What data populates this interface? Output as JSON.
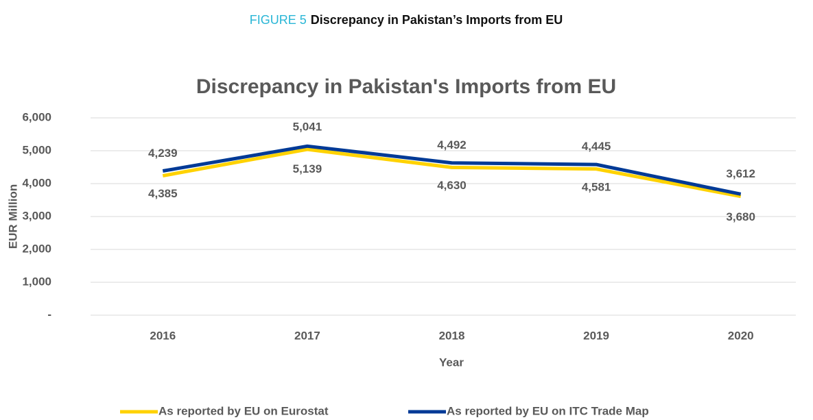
{
  "figure_label": "FIGURE 5",
  "figure_title": "Discrepancy in Pakistan’s Imports from EU",
  "chart_data": {
    "type": "line",
    "title": "Discrepancy in Pakistan's Imports from EU",
    "x_label": "Year",
    "y_label": "EUR Million",
    "categories": [
      "2016",
      "2017",
      "2018",
      "2019",
      "2020"
    ],
    "series": [
      {
        "name": "As reported by EU on Eurostat",
        "color": "#ffd200",
        "values": [
          4239,
          5041,
          4492,
          4445,
          3612
        ],
        "value_labels": [
          "4,239",
          "5,041",
          "4,492",
          "4,445",
          "3,612"
        ]
      },
      {
        "name": "As reported by EU on ITC Trade Map",
        "color": "#003a96",
        "values": [
          4385,
          5139,
          4630,
          4581,
          3680
        ],
        "value_labels": [
          "4,385",
          "5,139",
          "4,630",
          "4,581",
          "3,680"
        ]
      }
    ],
    "ylim": [
      0,
      6000
    ],
    "yticks": [
      {
        "value": 0,
        "label": "-"
      },
      {
        "value": 1000,
        "label": "1,000"
      },
      {
        "value": 2000,
        "label": "2,000"
      },
      {
        "value": 3000,
        "label": "3,000"
      },
      {
        "value": 4000,
        "label": "4,000"
      },
      {
        "value": 5000,
        "label": "5,000"
      },
      {
        "value": 6000,
        "label": "6,000"
      }
    ],
    "grid": true,
    "legend": "bottom"
  }
}
